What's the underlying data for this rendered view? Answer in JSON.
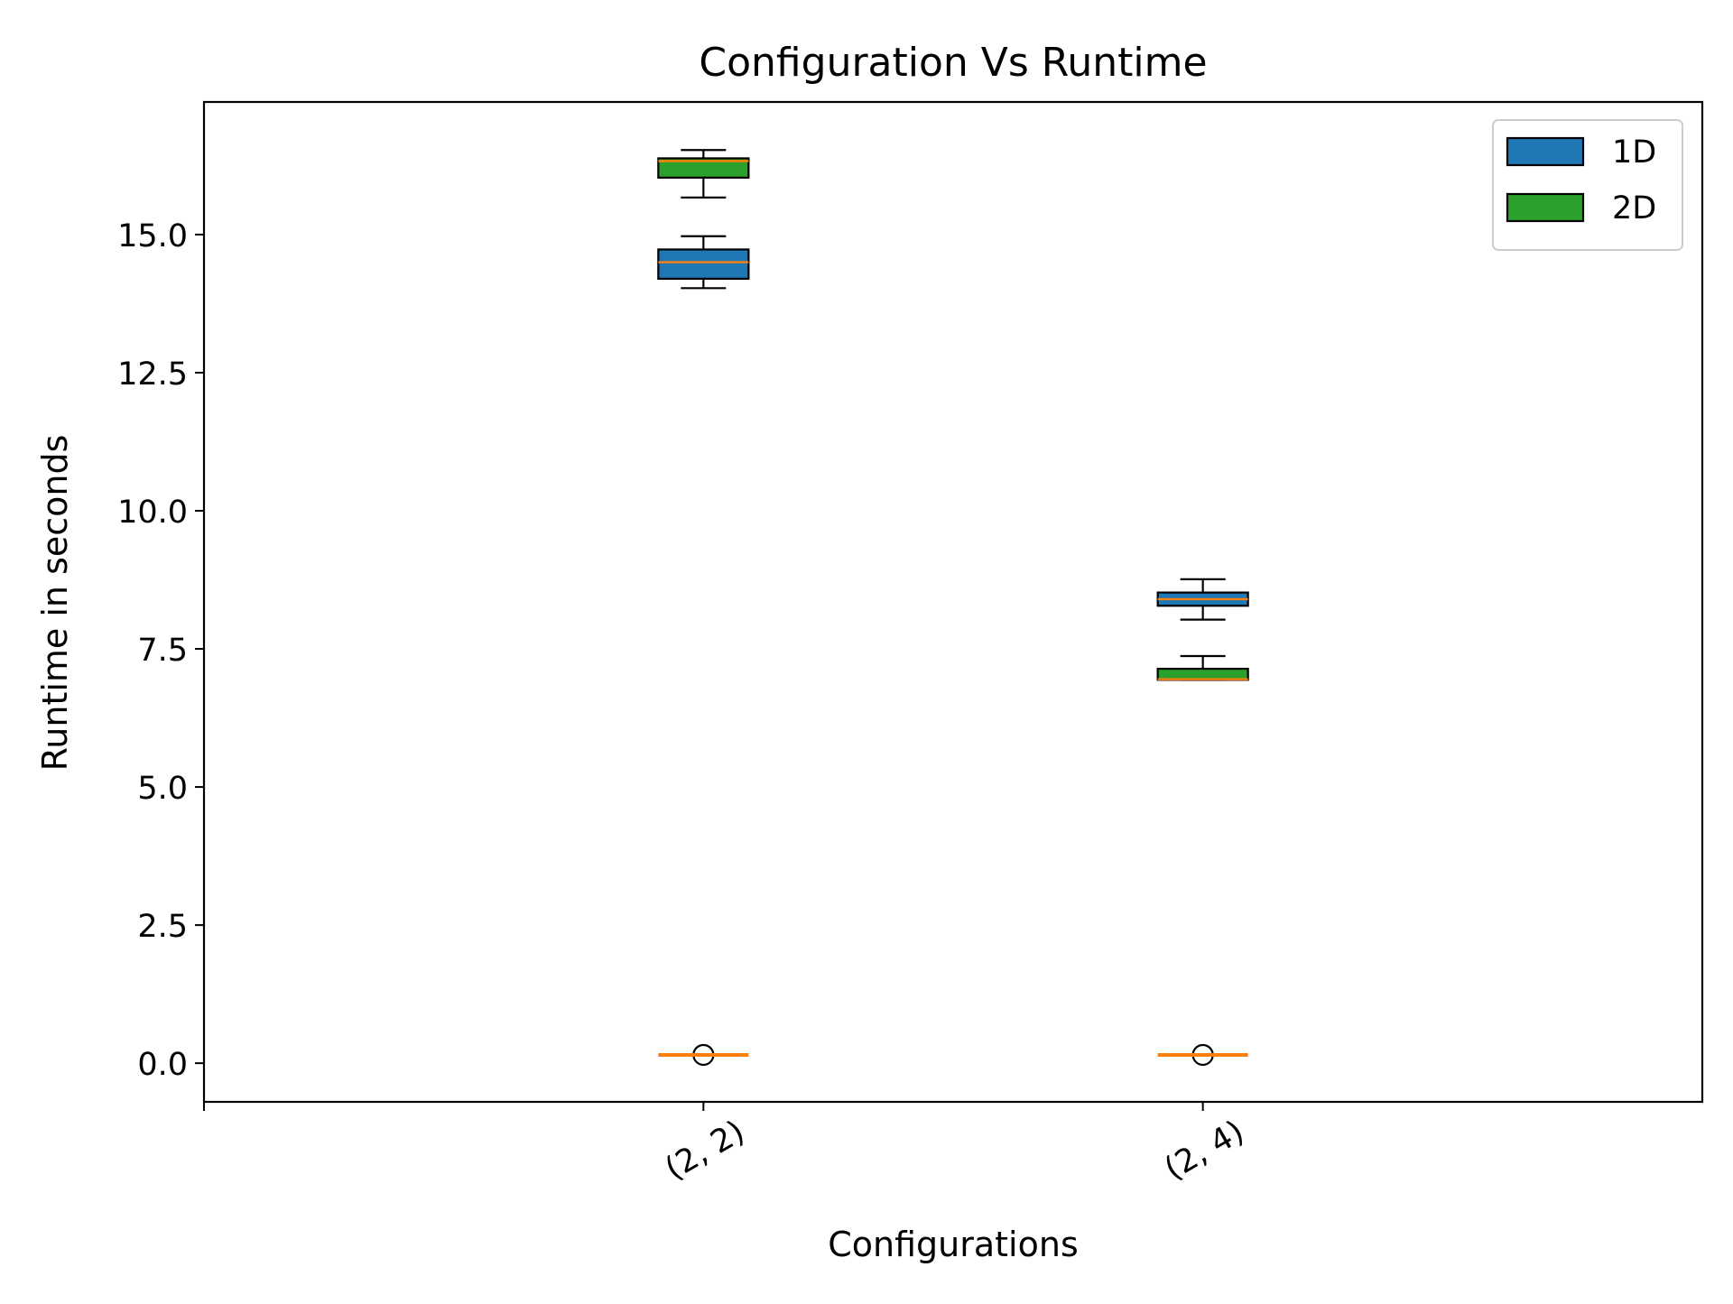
{
  "chart_data": {
    "type": "box",
    "title": "Configuration Vs Runtime",
    "xlabel": "Configurations",
    "ylabel": "Runtime in seconds",
    "categories": [
      "(2, 2)",
      "(2, 4)"
    ],
    "yticks": [
      "0.0",
      "2.5",
      "5.0",
      "7.5",
      "10.0",
      "12.5",
      "15.0"
    ],
    "ylim": [
      -0.7,
      17.4
    ],
    "legend_position": "upper right",
    "grid": false,
    "series": [
      {
        "name": "1D",
        "color": "#1f77b4",
        "boxes": [
          {
            "whisker_low": 14.03,
            "q1": 14.2,
            "median": 14.5,
            "q3": 14.73,
            "whisker_high": 14.97
          },
          {
            "whisker_low": 8.03,
            "q1": 8.28,
            "median": 8.4,
            "q3": 8.52,
            "whisker_high": 8.76
          }
        ]
      },
      {
        "name": "2D",
        "color": "#2ca02c",
        "boxes": [
          {
            "whisker_low": 15.67,
            "q1": 16.03,
            "median": 16.33,
            "q3": 16.38,
            "whisker_high": 16.53
          },
          {
            "whisker_low": 6.94,
            "q1": 6.94,
            "median": 6.95,
            "q3": 7.14,
            "whisker_high": 7.37
          }
        ]
      },
      {
        "name": "",
        "color": "#ff7f0e",
        "boxes": [
          {
            "whisker_low": 0.15,
            "q1": 0.15,
            "median": 0.15,
            "q3": 0.15,
            "whisker_high": 0.15,
            "outliers": [
              0.15
            ]
          },
          {
            "whisker_low": 0.15,
            "q1": 0.15,
            "median": 0.15,
            "q3": 0.15,
            "whisker_high": 0.15,
            "outliers": [
              0.15
            ]
          }
        ]
      }
    ],
    "median_color": "#ff7f0e"
  }
}
